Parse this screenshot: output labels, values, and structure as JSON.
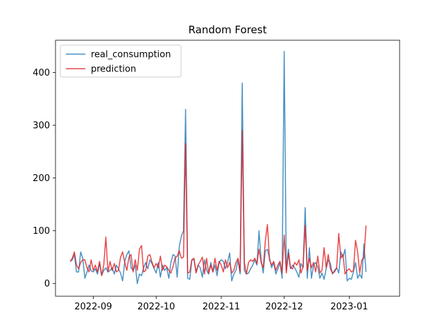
{
  "chart_data": {
    "type": "line",
    "title": "Random Forest",
    "xlabel": "",
    "ylabel": "",
    "x_start": "2022-08-21",
    "x_step_days": 1,
    "xlim": [
      "2022-08-14",
      "2023-01-25"
    ],
    "ylim": [
      -24,
      461
    ],
    "x_ticks": [
      "2022-09-01",
      "2022-10-01",
      "2022-11-01",
      "2022-12-01",
      "2023-01-01"
    ],
    "x_tick_labels": [
      "2022-09",
      "2022-10",
      "2022-11",
      "2022-12",
      "2023-01"
    ],
    "y_ticks": [
      0,
      100,
      200,
      300,
      400
    ],
    "y_tick_labels": [
      "0",
      "100",
      "200",
      "300",
      "400"
    ],
    "grid": false,
    "legend_position": "top-left",
    "series": [
      {
        "name": "real_consumption",
        "color": "#1f77b4",
        "values": [
          42,
          45,
          55,
          22,
          22,
          60,
          48,
          10,
          22,
          35,
          24,
          22,
          28,
          18,
          38,
          16,
          25,
          30,
          22,
          25,
          30,
          18,
          35,
          28,
          20,
          5,
          42,
          55,
          62,
          30,
          25,
          35,
          0,
          18,
          15,
          30,
          40,
          28,
          45,
          38,
          28,
          20,
          40,
          12,
          35,
          25,
          30,
          10,
          40,
          55,
          52,
          12,
          70,
          90,
          100,
          330,
          10,
          8,
          45,
          45,
          22,
          35,
          30,
          12,
          45,
          25,
          18,
          40,
          22,
          35,
          15,
          40,
          45,
          42,
          28,
          40,
          58,
          5,
          18,
          25,
          45,
          18,
          380,
          25,
          18,
          20,
          28,
          35,
          45,
          35,
          100,
          45,
          20,
          62,
          65,
          48,
          30,
          40,
          18,
          28,
          40,
          10,
          440,
          25,
          65,
          28,
          35,
          30,
          22,
          12,
          38,
          30,
          144,
          10,
          68,
          10,
          35,
          40,
          32,
          10,
          20,
          8,
          28,
          45,
          38,
          18,
          25,
          30,
          20,
          60,
          50,
          65,
          5,
          10,
          8,
          22,
          40,
          10,
          18,
          10,
          75,
          22
        ],
        "opacity": 0.8
      },
      {
        "name": "prediction",
        "color": "#e41a1c",
        "values": [
          42,
          48,
          60,
          35,
          28,
          40,
          45,
          45,
          30,
          22,
          45,
          25,
          35,
          22,
          42,
          15,
          35,
          88,
          22,
          42,
          25,
          38,
          22,
          25,
          50,
          60,
          40,
          25,
          50,
          55,
          22,
          45,
          25,
          65,
          72,
          22,
          25,
          52,
          55,
          40,
          30,
          38,
          30,
          52,
          25,
          35,
          32,
          25,
          20,
          32,
          48,
          52,
          62,
          48,
          50,
          265,
          20,
          22,
          45,
          48,
          20,
          35,
          42,
          50,
          18,
          48,
          20,
          35,
          22,
          48,
          25,
          42,
          35,
          22,
          45,
          30,
          40,
          20,
          25,
          40,
          48,
          22,
          290,
          40,
          18,
          40,
          45,
          42,
          48,
          38,
          65,
          40,
          30,
          80,
          112,
          45,
          35,
          42,
          25,
          35,
          42,
          20,
          92,
          20,
          58,
          30,
          28,
          40,
          35,
          45,
          20,
          32,
          110,
          25,
          48,
          30,
          40,
          22,
          52,
          20,
          25,
          68,
          30,
          55,
          28,
          20,
          22,
          30,
          95,
          48,
          55,
          18,
          25,
          28,
          22,
          25,
          82,
          60,
          20,
          45,
          48,
          110
        ],
        "opacity": 0.8
      }
    ]
  }
}
